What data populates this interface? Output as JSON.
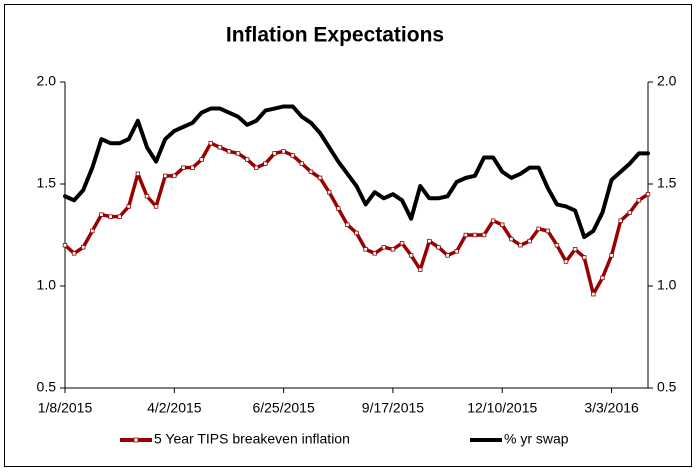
{
  "chart_data": {
    "type": "line",
    "title": "Inflation Expectations",
    "categories": [
      "1/8/2015",
      null,
      null,
      null,
      null,
      null,
      null,
      null,
      null,
      null,
      null,
      null,
      "4/2/2015",
      null,
      null,
      null,
      null,
      null,
      null,
      null,
      null,
      null,
      null,
      null,
      "6/25/2015",
      null,
      null,
      null,
      null,
      null,
      null,
      null,
      null,
      null,
      null,
      null,
      "9/17/2015",
      null,
      null,
      null,
      null,
      null,
      null,
      null,
      null,
      null,
      null,
      null,
      "12/10/2015",
      null,
      null,
      null,
      null,
      null,
      null,
      null,
      null,
      null,
      null,
      null,
      "3/3/2016",
      null,
      null,
      null,
      null
    ],
    "series": [
      {
        "name": "5 Year TIPS breakeven inflation",
        "color": "#990000",
        "values": [
          1.2,
          1.16,
          1.19,
          1.27,
          1.35,
          1.34,
          1.34,
          1.39,
          1.55,
          1.44,
          1.39,
          1.54,
          1.54,
          1.58,
          1.58,
          1.62,
          1.7,
          1.68,
          1.66,
          1.65,
          1.62,
          1.58,
          1.6,
          1.65,
          1.66,
          1.64,
          1.6,
          1.56,
          1.53,
          1.46,
          1.38,
          1.3,
          1.26,
          1.18,
          1.16,
          1.19,
          1.18,
          1.21,
          1.15,
          1.08,
          1.22,
          1.19,
          1.15,
          1.17,
          1.25,
          1.25,
          1.25,
          1.32,
          1.3,
          1.23,
          1.2,
          1.22,
          1.28,
          1.27,
          1.2,
          1.12,
          1.18,
          1.14,
          0.96,
          1.04,
          1.15,
          1.32,
          1.36,
          1.42,
          1.45
        ]
      },
      {
        "name": "% yr swap",
        "color": "#000000",
        "values": [
          1.44,
          1.42,
          1.47,
          1.58,
          1.72,
          1.7,
          1.7,
          1.72,
          1.81,
          1.68,
          1.61,
          1.72,
          1.76,
          1.78,
          1.8,
          1.85,
          1.87,
          1.87,
          1.85,
          1.83,
          1.79,
          1.81,
          1.86,
          1.87,
          1.88,
          1.88,
          1.83,
          1.8,
          1.75,
          1.68,
          1.61,
          1.55,
          1.49,
          1.4,
          1.46,
          1.43,
          1.45,
          1.42,
          1.33,
          1.49,
          1.43,
          1.43,
          1.44,
          1.51,
          1.53,
          1.54,
          1.63,
          1.63,
          1.56,
          1.53,
          1.55,
          1.58,
          1.58,
          1.48,
          1.4,
          1.39,
          1.37,
          1.24,
          1.27,
          1.36,
          1.52,
          1.56,
          1.6,
          1.65,
          1.65
        ]
      }
    ],
    "ylim": [
      0.5,
      2.0
    ],
    "yticks": [
      {
        "value": 0.5,
        "label": "0.5"
      },
      {
        "value": 1,
        "label": "1.0"
      },
      {
        "value": 1.5,
        "label": "1.5"
      },
      {
        "value": 2,
        "label": "2.0"
      }
    ],
    "y2lim": [
      0.5,
      2.0
    ],
    "y2ticks": [
      {
        "value": 0.5,
        "label": "0.5"
      },
      {
        "value": 1,
        "label": "1.0"
      },
      {
        "value": 1.5,
        "label": "1.5"
      },
      {
        "value": 2,
        "label": "2.0"
      }
    ],
    "grid": false,
    "legend": "bottom"
  }
}
